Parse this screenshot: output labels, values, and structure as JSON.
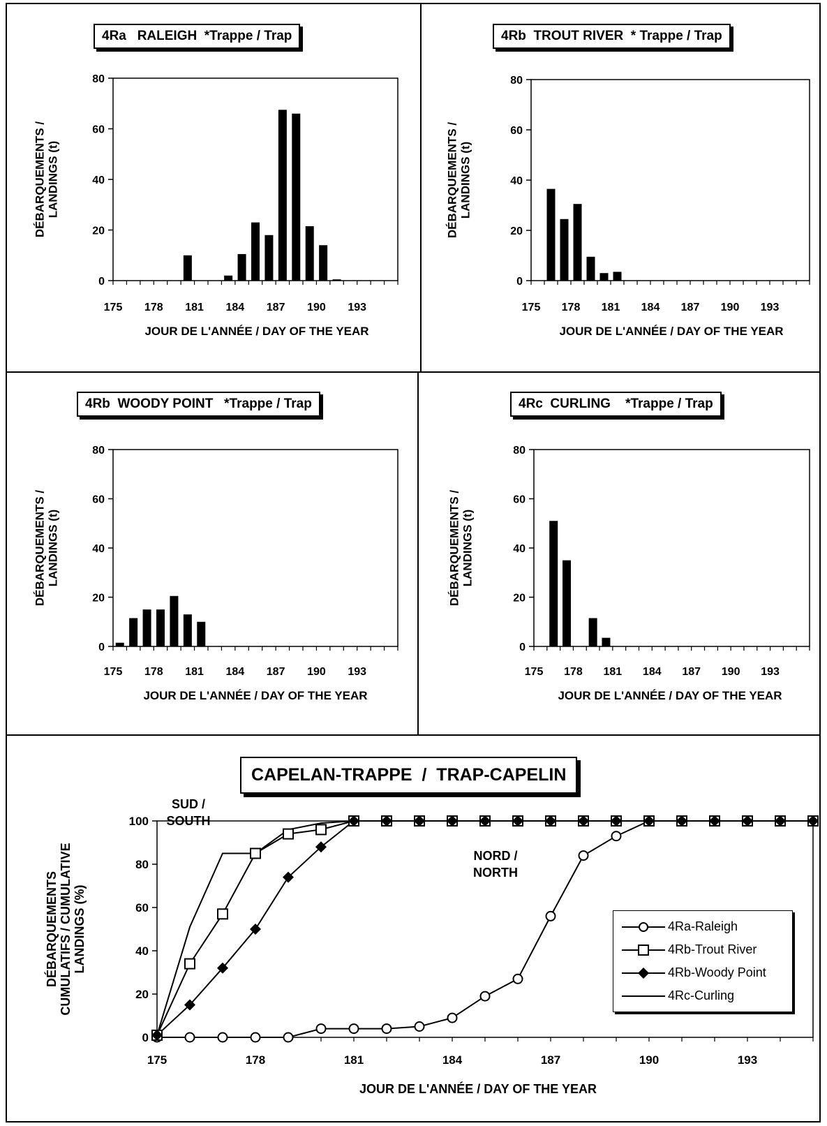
{
  "chart_data": [
    {
      "type": "bar",
      "title": "4Ra   RALEIGH  *Trappe / Trap",
      "xlabel": "JOUR DE L'ANNÉE / DAY OF THE YEAR",
      "ylabel": [
        "DÉBARQUEMENTS /",
        "LANDINGS (t)"
      ],
      "ylim": [
        0,
        80
      ],
      "yticks": [
        0,
        20,
        40,
        60,
        80
      ],
      "xlim": [
        175,
        196
      ],
      "xticks": [
        175,
        178,
        181,
        184,
        187,
        190,
        193
      ],
      "x": [
        180,
        183,
        184,
        185,
        186,
        187,
        188,
        189,
        190,
        191
      ],
      "values": [
        10,
        2,
        10.5,
        23,
        18,
        67.5,
        66,
        21.5,
        14,
        0.5
      ]
    },
    {
      "type": "bar",
      "title": "4Rb  TROUT RIVER  * Trappe / Trap",
      "xlabel": "JOUR DE L'ANNÉE / DAY OF THE YEAR",
      "ylabel": [
        "DÉBARQUEMENTS /",
        "LANDINGS (t)"
      ],
      "ylim": [
        0,
        80
      ],
      "yticks": [
        0,
        20,
        40,
        60,
        80
      ],
      "xlim": [
        175,
        196
      ],
      "xticks": [
        175,
        178,
        181,
        184,
        187,
        190,
        193
      ],
      "x": [
        176,
        177,
        178,
        179,
        180,
        181
      ],
      "values": [
        36.5,
        24.5,
        30.5,
        9.5,
        3,
        3.5
      ]
    },
    {
      "type": "bar",
      "title": "4Rb  WOODY POINT   *Trappe / Trap",
      "xlabel": "JOUR DE L'ANNÉE / DAY OF THE YEAR",
      "ylabel": [
        "DÉBARQUEMENTS /",
        "LANDINGS (t)"
      ],
      "ylim": [
        0,
        80
      ],
      "yticks": [
        0,
        20,
        40,
        60,
        80
      ],
      "xlim": [
        175,
        196
      ],
      "xticks": [
        175,
        178,
        181,
        184,
        187,
        190,
        193
      ],
      "x": [
        175,
        176,
        177,
        178,
        179,
        180,
        181
      ],
      "values": [
        1.5,
        11.5,
        15,
        15,
        20.5,
        13,
        10
      ]
    },
    {
      "type": "bar",
      "title": "4Rc  CURLING    *Trappe / Trap",
      "xlabel": "JOUR DE L'ANNÉE / DAY OF THE YEAR",
      "ylabel": [
        "DÉBARQUEMENTS /",
        "LANDINGS (t)"
      ],
      "ylim": [
        0,
        80
      ],
      "yticks": [
        0,
        20,
        40,
        60,
        80
      ],
      "xlim": [
        175,
        196
      ],
      "xticks": [
        175,
        178,
        181,
        184,
        187,
        190,
        193
      ],
      "x": [
        176,
        177,
        179,
        180
      ],
      "values": [
        51,
        35,
        11.5,
        3.5
      ]
    },
    {
      "type": "line",
      "title": "CAPELAN-TRAPPE  /  TRAP-CAPELIN",
      "xlabel": "JOUR DE L'ANNÉE  /  DAY OF THE YEAR",
      "ylabel": [
        "DÉBARQUEMENTS",
        "CUMULATIFS / CUMULATIVE",
        "LANDINGS (%)"
      ],
      "ylim": [
        0,
        100
      ],
      "yticks": [
        0,
        20,
        40,
        60,
        80,
        100
      ],
      "xlim": [
        175,
        195
      ],
      "xticks": [
        175,
        178,
        181,
        184,
        187,
        190,
        193
      ],
      "legend_position": "right",
      "annotations": {
        "south": [
          "SUD /",
          "SOUTH"
        ],
        "north": [
          "NORD /",
          "NORTH"
        ]
      },
      "series": [
        {
          "name": "4Ra-Raleigh",
          "marker": "circle-open",
          "x": [
            175,
            176,
            177,
            178,
            179,
            180,
            181,
            182,
            183,
            184,
            185,
            186,
            187,
            188,
            189,
            190,
            191,
            192,
            193,
            194,
            195
          ],
          "values": [
            0,
            0,
            0,
            0,
            0,
            4,
            4,
            4,
            5,
            9,
            19,
            27,
            56,
            84,
            93,
            100,
            100,
            100,
            100,
            100,
            100
          ]
        },
        {
          "name": "4Rb-Trout River",
          "marker": "square-open",
          "x": [
            175,
            176,
            177,
            178,
            179,
            180,
            181,
            182,
            183,
            184,
            185,
            186,
            187,
            188,
            189,
            190,
            191,
            192,
            193,
            194,
            195
          ],
          "values": [
            1,
            34,
            57,
            85,
            94,
            96,
            100,
            100,
            100,
            100,
            100,
            100,
            100,
            100,
            100,
            100,
            100,
            100,
            100,
            100,
            100
          ]
        },
        {
          "name": "4Rb-Woody Point",
          "marker": "diamond-filled",
          "x": [
            175,
            176,
            177,
            178,
            179,
            180,
            181,
            182,
            183,
            184,
            185,
            186,
            187,
            188,
            189,
            190,
            191,
            192,
            193,
            194,
            195
          ],
          "values": [
            1,
            15,
            32,
            50,
            74,
            88,
            100,
            100,
            100,
            100,
            100,
            100,
            100,
            100,
            100,
            100,
            100,
            100,
            100,
            100,
            100
          ]
        },
        {
          "name": "4Rc-Curling",
          "marker": "none",
          "x": [
            175,
            176,
            177,
            178,
            179,
            180,
            181,
            195
          ],
          "values": [
            1,
            51,
            85,
            85,
            96,
            99,
            100,
            100
          ]
        }
      ]
    }
  ]
}
